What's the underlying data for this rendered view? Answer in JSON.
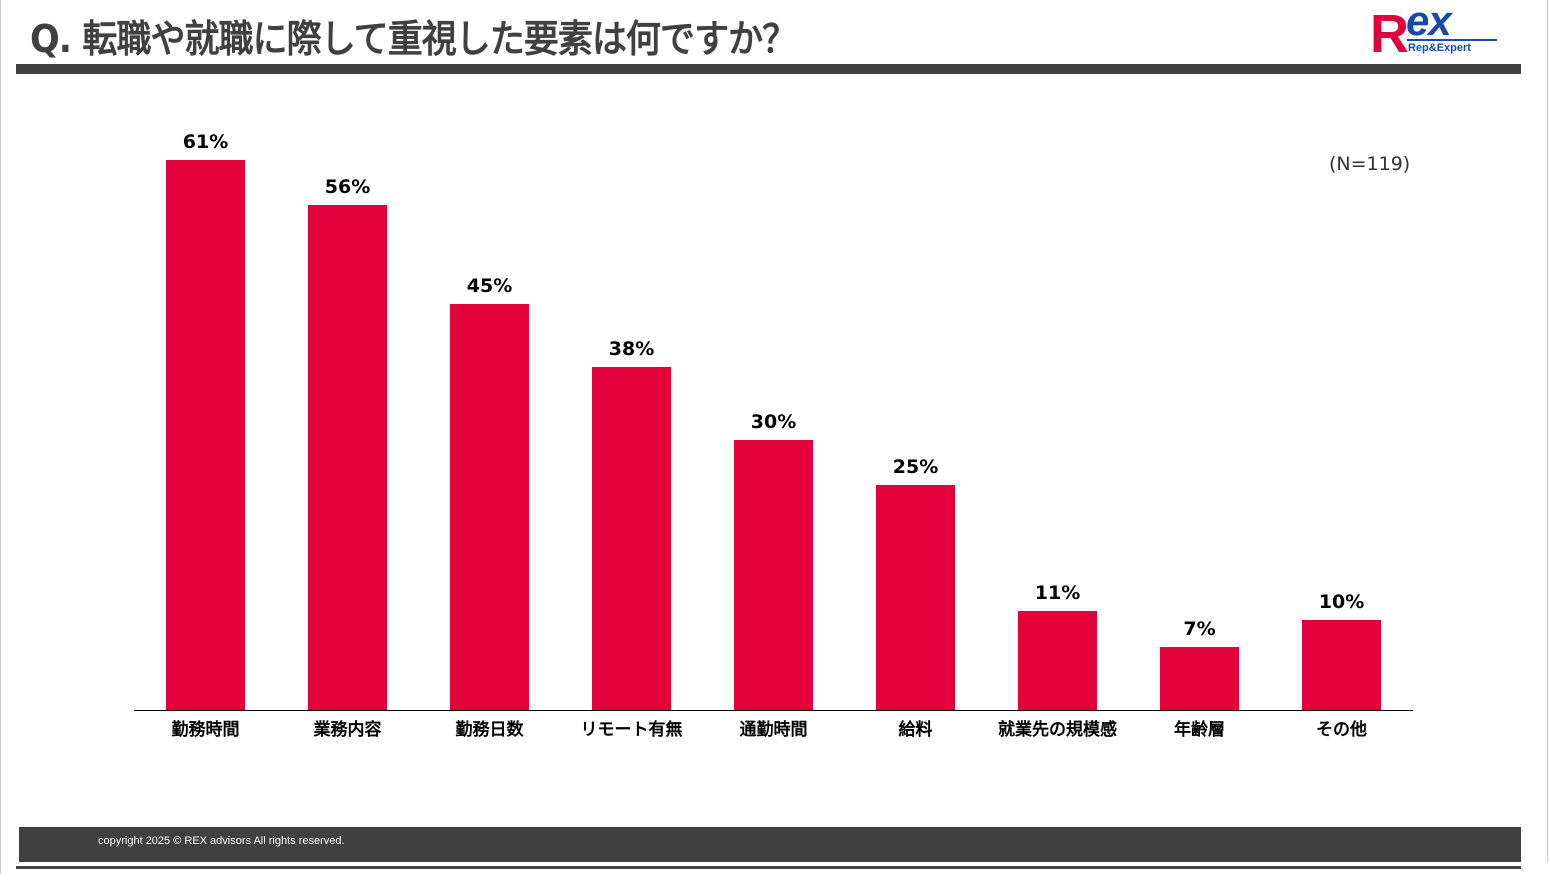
{
  "header": {
    "title": "Q. 転職や就職に際して重視した要素は何ですか？",
    "logo": {
      "main_r": "R",
      "main_ex": "ex",
      "sub": "Rep&Expert"
    }
  },
  "chart_meta": {
    "sample_size": "(N=119)"
  },
  "footer": {
    "copyright": "copyright 2025 © REX advisors All rights reserved."
  },
  "colors": {
    "bar": "#e4003a",
    "title": "#404040",
    "band": "#404040",
    "logo_red": "#e0003c",
    "logo_blue": "#1a4aa8"
  },
  "chart_data": {
    "type": "bar",
    "title": "Q. 転職や就職に際して重視した要素は何ですか？",
    "annotation": "(N=119)",
    "categories": [
      "勤務時間",
      "業務内容",
      "勤務日数",
      "リモート有無",
      "通勤時間",
      "給料",
      "就業先の規模感",
      "年齢層",
      "その他"
    ],
    "values": [
      61,
      56,
      45,
      38,
      30,
      25,
      11,
      7,
      10
    ],
    "labels": [
      "61%",
      "56%",
      "45%",
      "38%",
      "30%",
      "25%",
      "11%",
      "7%",
      "10%"
    ],
    "xlabel": "",
    "ylabel": "",
    "ylim": [
      0,
      61
    ],
    "grid": false,
    "legend": "none",
    "unit": "%"
  }
}
